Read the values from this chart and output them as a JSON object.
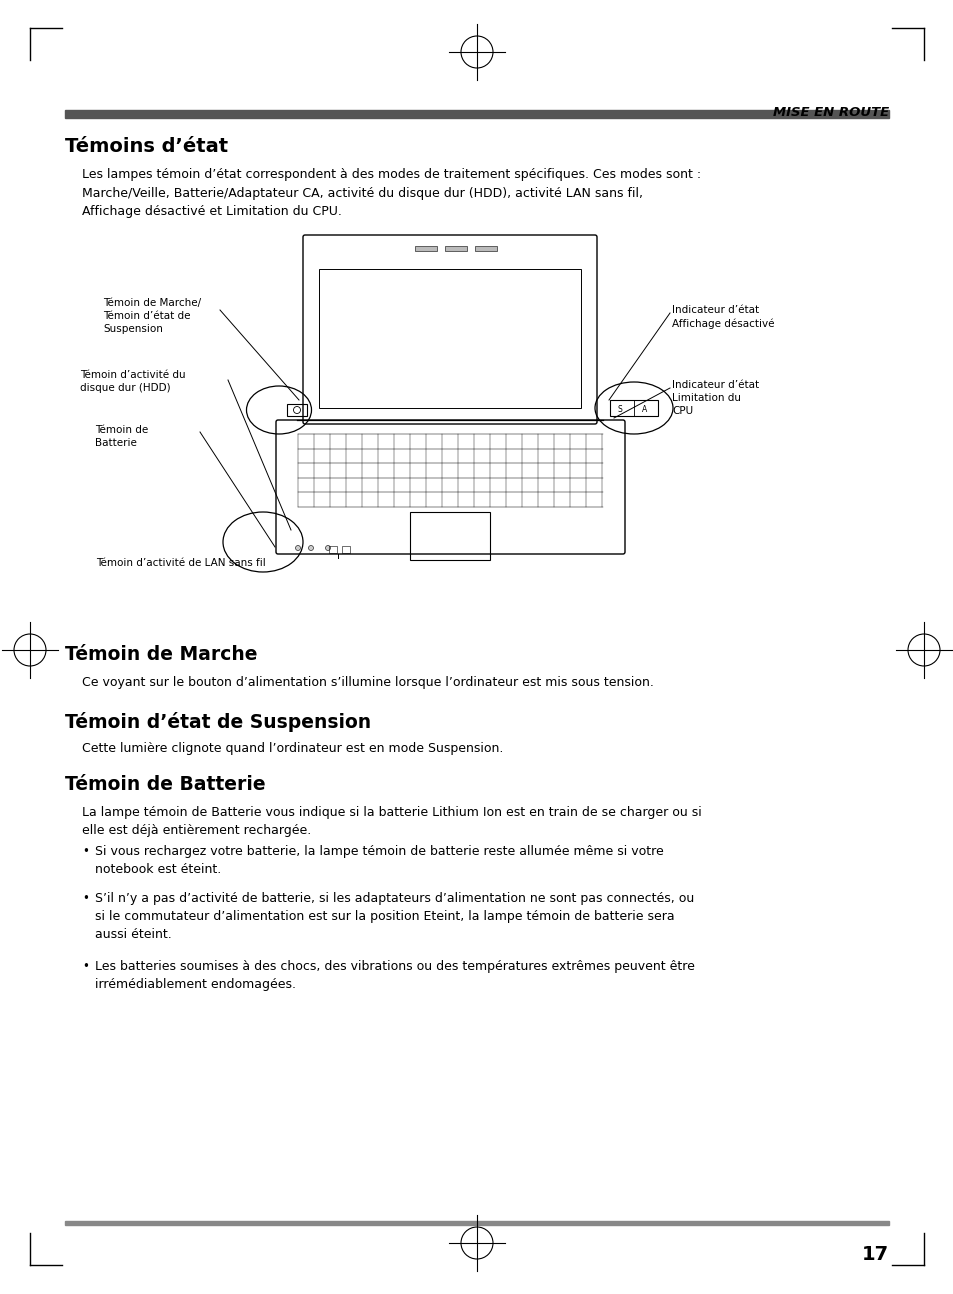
{
  "page_bg": "#ffffff",
  "header_text": "MISE EN ROUTE",
  "title1": "Témoins d’état",
  "body1": "Les lampes témoin d’état correspondent à des modes de traitement spécifiques. Ces modes sont :\nMarche/Veille, Batterie/Adaptateur CA, activité du disque dur (HDD), activité LAN sans fil,\nAffichage désactivé et Limitation du CPU.",
  "title2": "Témoin de Marche",
  "body2": "Ce voyant sur le bouton d’alimentation s’illumine lorsque l’ordinateur est mis sous tension.",
  "title3": "Témoin d’état de Suspension",
  "body3": "Cette lumière clignote quand l’ordinateur est en mode Suspension.",
  "title4": "Témoin de Batterie",
  "body4": "La lampe témoin de Batterie vous indique si la batterie Lithium Ion est en train de se charger ou si\nelle est déjà entièrement rechargée.",
  "bullet1": "Si vous rechargez votre batterie, la lampe témoin de batterie reste allumée même si votre\nnotebook est éteint.",
  "bullet2": "S’il n’y a pas d’activité de batterie, si les adaptateurs d’alimentation ne sont pas connectés, ou\nsi le commutateur d’alimentation est sur la position Eteint, la lampe témoin de batterie sera\naussi éteint.",
  "bullet3": "Les batteries soumises à des chocs, des vibrations ou des températures extrêmes peuvent être\nirrémédiablement endomagées.",
  "page_number": "17",
  "label_left1": "Témoin de Marche/\nTémoin d’état de\nSuspension",
  "label_left2": "Témoin d’activité du\ndisque dur (HDD)",
  "label_left3": "Témoin de\nBatterie",
  "label_left4": "Témoin d’activité de LAN sans fil",
  "label_right1": "Indicateur d’état\nAffichage désactivé",
  "label_right2": "Indicateur d’état\nLimitation du\nCPU"
}
